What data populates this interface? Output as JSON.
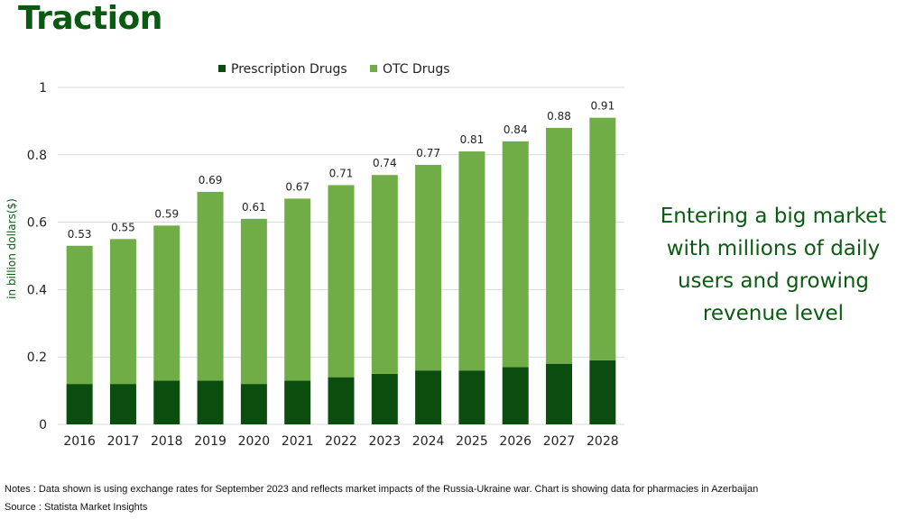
{
  "slide": {
    "title": "Traction",
    "side_text": "Entering a big market with millions of daily users and growing revenue level",
    "notes": "Notes : Data shown is using  exchange rates for September 2023 and reflects market impacts of the Russia-Ukraine war. Chart is showing data for pharmacies in Azerbaijan",
    "source": "Source : Statista Market Insights"
  },
  "colors": {
    "title": "#0b5a12",
    "prescription": "#0b4d0f",
    "otc": "#70ad47",
    "grid": "#d9d9d9"
  },
  "chart_data": {
    "type": "bar",
    "stacked": true,
    "categories": [
      "2016",
      "2017",
      "2018",
      "2019",
      "2020",
      "2021",
      "2022",
      "2023",
      "2024",
      "2025",
      "2026",
      "2027",
      "2028"
    ],
    "series": [
      {
        "name": "Prescription Drugs",
        "values": [
          0.12,
          0.12,
          0.13,
          0.13,
          0.12,
          0.13,
          0.14,
          0.15,
          0.16,
          0.16,
          0.17,
          0.18,
          0.19
        ]
      },
      {
        "name": "OTC Drugs",
        "values": [
          0.41,
          0.43,
          0.46,
          0.56,
          0.49,
          0.54,
          0.57,
          0.59,
          0.61,
          0.65,
          0.67,
          0.7,
          0.72
        ]
      }
    ],
    "totals": [
      "0.53",
      "0.55",
      "0.59",
      "0.69",
      "0.61",
      "0.67",
      "0.71",
      "0.74",
      "0.77",
      "0.81",
      "0.84",
      "0.88",
      "0.91"
    ],
    "ylabel": "in billion dollars($)",
    "yticks": [
      "0",
      "0.2",
      "0.4",
      "0.6",
      "0.8",
      "1"
    ],
    "ylim": [
      0,
      1
    ],
    "grid": true,
    "legend_position": "top"
  }
}
